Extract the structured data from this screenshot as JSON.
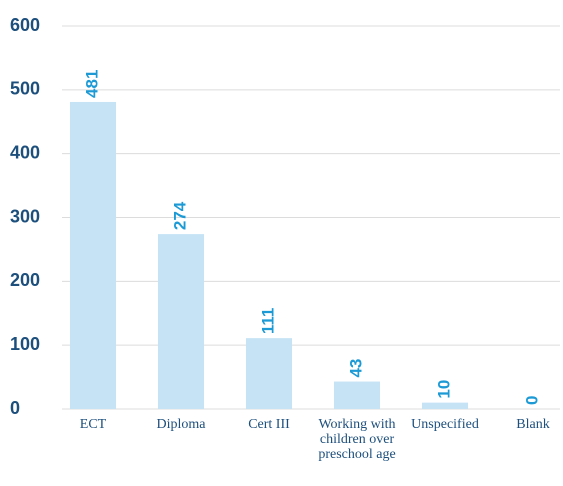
{
  "chart_data": {
    "type": "bar",
    "categories": [
      "ECT",
      "Diploma",
      "Cert III",
      "Working with children over preschool age",
      "Unspecified",
      "Blank"
    ],
    "values": [
      481,
      274,
      111,
      43,
      10,
      0
    ],
    "color": "#c6e3f6",
    "label_color": "#1b9ad6",
    "ylim": [
      0,
      600
    ],
    "yticks": [
      0,
      100,
      200,
      300,
      400,
      500,
      600
    ],
    "grid": true
  }
}
